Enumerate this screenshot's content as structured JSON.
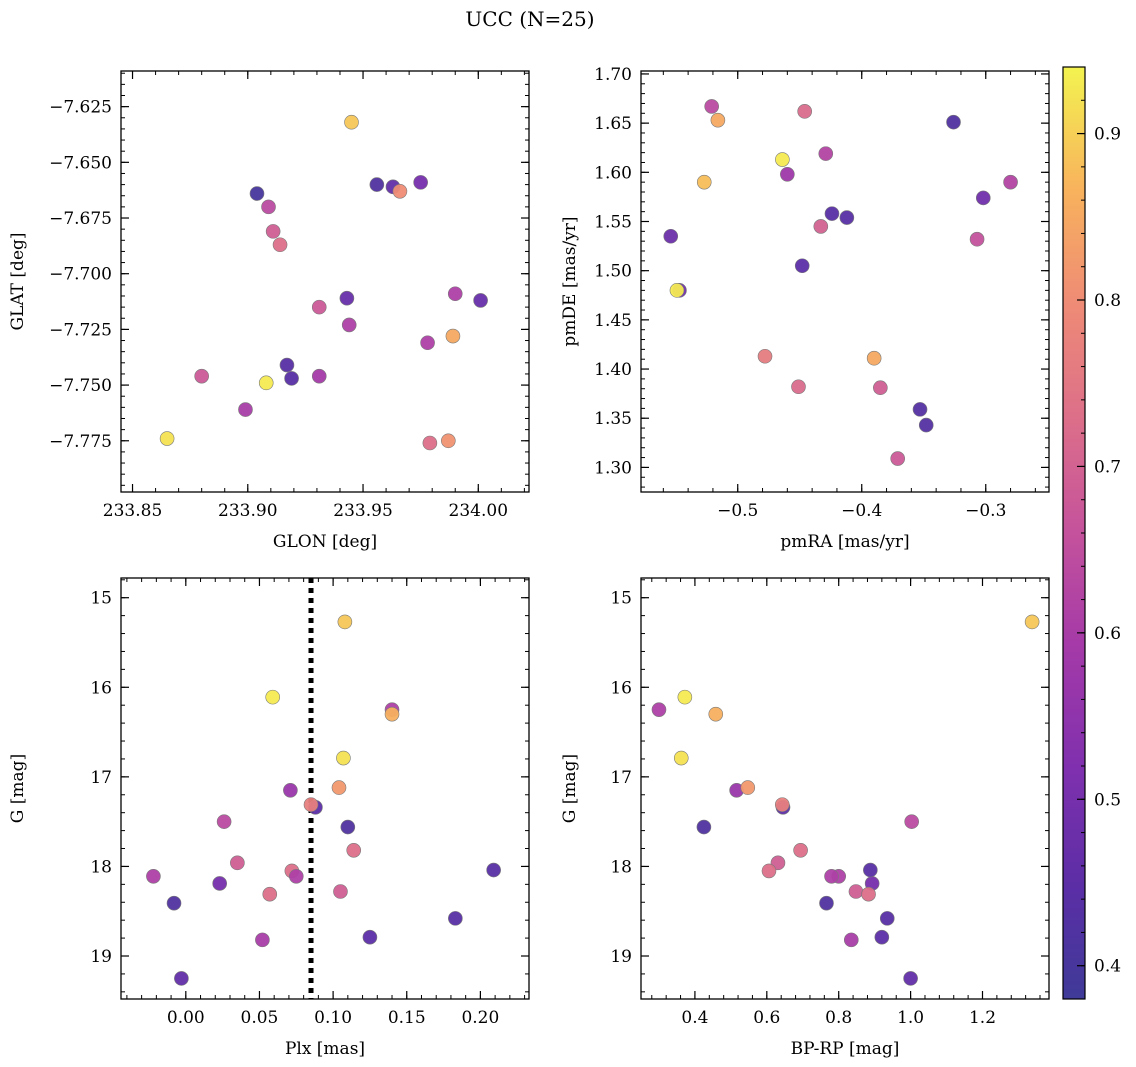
{
  "figure": {
    "title": "UCC (N=25)"
  },
  "colorbar": {
    "vmin": 0.38,
    "vmax": 0.94,
    "ticks": [
      0.4,
      0.5,
      0.6,
      0.7,
      0.8,
      0.9
    ],
    "tick_labels": [
      "0.4",
      "0.5",
      "0.6",
      "0.7",
      "0.8",
      "0.9"
    ],
    "colormap": "plasma"
  },
  "chart_data": [
    {
      "type": "scatter",
      "xlabel": "GLON [deg]",
      "ylabel": "GLAT [deg]",
      "xlim": [
        233.845,
        234.022
      ],
      "ylim": [
        -7.798,
        -7.609
      ],
      "xticks": [
        233.85,
        233.9,
        233.95,
        234.0
      ],
      "xtick_labels": [
        "233.85",
        "233.90",
        "233.95",
        "234.00"
      ],
      "yticks": [
        -7.625,
        -7.65,
        -7.675,
        -7.7,
        -7.725,
        -7.75,
        -7.775
      ],
      "ytick_labels": [
        "−7.625",
        "−7.650",
        "−7.675",
        "−7.700",
        "−7.725",
        "−7.750",
        "−7.775"
      ],
      "points": [
        {
          "x": 233.945,
          "y": -7.632,
          "c": 0.89
        },
        {
          "x": 233.956,
          "y": -7.66,
          "c": 0.42
        },
        {
          "x": 233.963,
          "y": -7.661,
          "c": 0.46
        },
        {
          "x": 233.966,
          "y": -7.663,
          "c": 0.8
        },
        {
          "x": 233.975,
          "y": -7.659,
          "c": 0.5
        },
        {
          "x": 233.904,
          "y": -7.664,
          "c": 0.4
        },
        {
          "x": 233.909,
          "y": -7.67,
          "c": 0.64
        },
        {
          "x": 233.911,
          "y": -7.681,
          "c": 0.69
        },
        {
          "x": 233.914,
          "y": -7.687,
          "c": 0.73
        },
        {
          "x": 233.943,
          "y": -7.711,
          "c": 0.47
        },
        {
          "x": 233.931,
          "y": -7.715,
          "c": 0.68
        },
        {
          "x": 233.944,
          "y": -7.723,
          "c": 0.61
        },
        {
          "x": 233.99,
          "y": -7.709,
          "c": 0.61
        },
        {
          "x": 234.001,
          "y": -7.712,
          "c": 0.47
        },
        {
          "x": 233.978,
          "y": -7.731,
          "c": 0.61
        },
        {
          "x": 233.989,
          "y": -7.728,
          "c": 0.85
        },
        {
          "x": 233.917,
          "y": -7.741,
          "c": 0.44
        },
        {
          "x": 233.919,
          "y": -7.747,
          "c": 0.44
        },
        {
          "x": 233.931,
          "y": -7.746,
          "c": 0.59
        },
        {
          "x": 233.88,
          "y": -7.746,
          "c": 0.68
        },
        {
          "x": 233.908,
          "y": -7.749,
          "c": 0.93
        },
        {
          "x": 233.899,
          "y": -7.761,
          "c": 0.6
        },
        {
          "x": 233.865,
          "y": -7.774,
          "c": 0.92
        },
        {
          "x": 233.979,
          "y": -7.776,
          "c": 0.73
        },
        {
          "x": 233.987,
          "y": -7.775,
          "c": 0.81
        }
      ]
    },
    {
      "type": "scatter",
      "xlabel": "pmRA [mas/yr]",
      "ylabel": "pmDE [mas/yr]",
      "xlim": [
        -0.578,
        -0.249
      ],
      "ylim": [
        1.275,
        1.703
      ],
      "xticks": [
        -0.5,
        -0.4,
        -0.3
      ],
      "xtick_labels": [
        "−0.5",
        "−0.4",
        "−0.3"
      ],
      "yticks": [
        1.3,
        1.35,
        1.4,
        1.45,
        1.5,
        1.55,
        1.6,
        1.65,
        1.7
      ],
      "ytick_labels": [
        "1.30",
        "1.35",
        "1.40",
        "1.45",
        "1.50",
        "1.55",
        "1.60",
        "1.65",
        "1.70"
      ],
      "points": [
        {
          "x": -0.521,
          "y": 1.667,
          "c": 0.64
        },
        {
          "x": -0.516,
          "y": 1.653,
          "c": 0.85
        },
        {
          "x": -0.446,
          "y": 1.662,
          "c": 0.72
        },
        {
          "x": -0.429,
          "y": 1.619,
          "c": 0.62
        },
        {
          "x": -0.464,
          "y": 1.613,
          "c": 0.93
        },
        {
          "x": -0.46,
          "y": 1.598,
          "c": 0.58
        },
        {
          "x": -0.527,
          "y": 1.59,
          "c": 0.88
        },
        {
          "x": -0.326,
          "y": 1.651,
          "c": 0.42
        },
        {
          "x": -0.302,
          "y": 1.574,
          "c": 0.49
        },
        {
          "x": -0.28,
          "y": 1.59,
          "c": 0.62
        },
        {
          "x": -0.424,
          "y": 1.558,
          "c": 0.44
        },
        {
          "x": -0.412,
          "y": 1.554,
          "c": 0.44
        },
        {
          "x": -0.433,
          "y": 1.545,
          "c": 0.7
        },
        {
          "x": -0.554,
          "y": 1.535,
          "c": 0.48
        },
        {
          "x": -0.307,
          "y": 1.532,
          "c": 0.66
        },
        {
          "x": -0.448,
          "y": 1.505,
          "c": 0.45
        },
        {
          "x": -0.547,
          "y": 1.48,
          "c": 0.49
        },
        {
          "x": -0.549,
          "y": 1.48,
          "c": 0.93
        },
        {
          "x": -0.478,
          "y": 1.413,
          "c": 0.76
        },
        {
          "x": -0.39,
          "y": 1.411,
          "c": 0.85
        },
        {
          "x": -0.451,
          "y": 1.382,
          "c": 0.72
        },
        {
          "x": -0.385,
          "y": 1.381,
          "c": 0.69
        },
        {
          "x": -0.353,
          "y": 1.359,
          "c": 0.43
        },
        {
          "x": -0.348,
          "y": 1.343,
          "c": 0.43
        },
        {
          "x": -0.371,
          "y": 1.309,
          "c": 0.68
        }
      ]
    },
    {
      "type": "scatter",
      "xlabel": "Plx [mas]",
      "ylabel": "G [mag]",
      "xlim": [
        -0.044,
        0.233
      ],
      "ylim": [
        19.48,
        14.78
      ],
      "xticks": [
        0.0,
        0.05,
        0.1,
        0.15,
        0.2
      ],
      "xtick_labels": [
        "0.00",
        "0.05",
        "0.10",
        "0.15",
        "0.20"
      ],
      "yticks": [
        15,
        16,
        17,
        18,
        19
      ],
      "ytick_labels": [
        "15",
        "16",
        "17",
        "18",
        "19"
      ],
      "vline": {
        "x": 0.085,
        "style": "dotted",
        "color": "#000000"
      },
      "points": [
        {
          "x": 0.108,
          "y": 15.27,
          "c": 0.89
        },
        {
          "x": 0.059,
          "y": 16.11,
          "c": 0.93
        },
        {
          "x": 0.14,
          "y": 16.25,
          "c": 0.61
        },
        {
          "x": 0.14,
          "y": 16.3,
          "c": 0.86
        },
        {
          "x": 0.107,
          "y": 16.79,
          "c": 0.92
        },
        {
          "x": 0.071,
          "y": 17.15,
          "c": 0.57
        },
        {
          "x": 0.104,
          "y": 17.12,
          "c": 0.82
        },
        {
          "x": 0.088,
          "y": 17.34,
          "c": 0.45
        },
        {
          "x": 0.085,
          "y": 17.31,
          "c": 0.77
        },
        {
          "x": 0.026,
          "y": 17.5,
          "c": 0.64
        },
        {
          "x": 0.11,
          "y": 17.56,
          "c": 0.42
        },
        {
          "x": 0.114,
          "y": 17.82,
          "c": 0.73
        },
        {
          "x": 0.035,
          "y": 17.96,
          "c": 0.69
        },
        {
          "x": 0.072,
          "y": 18.05,
          "c": 0.73
        },
        {
          "x": 0.075,
          "y": 18.11,
          "c": 0.61
        },
        {
          "x": -0.022,
          "y": 18.11,
          "c": 0.61
        },
        {
          "x": 0.023,
          "y": 18.19,
          "c": 0.5
        },
        {
          "x": 0.105,
          "y": 18.28,
          "c": 0.69
        },
        {
          "x": 0.057,
          "y": 18.31,
          "c": 0.73
        },
        {
          "x": 0.209,
          "y": 18.04,
          "c": 0.44
        },
        {
          "x": -0.008,
          "y": 18.41,
          "c": 0.42
        },
        {
          "x": 0.183,
          "y": 18.58,
          "c": 0.44
        },
        {
          "x": 0.052,
          "y": 18.82,
          "c": 0.6
        },
        {
          "x": 0.125,
          "y": 18.79,
          "c": 0.45
        },
        {
          "x": -0.003,
          "y": 19.25,
          "c": 0.46
        }
      ]
    },
    {
      "type": "scatter",
      "xlabel": "BP-RP [mag]",
      "ylabel": "G [mag]",
      "xlim": [
        0.25,
        1.385
      ],
      "ylim": [
        19.48,
        14.78
      ],
      "xticks": [
        0.4,
        0.6,
        0.8,
        1.0,
        1.2
      ],
      "xtick_labels": [
        "0.4",
        "0.6",
        "0.8",
        "1.0",
        "1.2"
      ],
      "yticks": [
        15,
        16,
        17,
        18,
        19
      ],
      "ytick_labels": [
        "15",
        "16",
        "17",
        "18",
        "19"
      ],
      "points": [
        {
          "x": 1.338,
          "y": 15.27,
          "c": 0.89
        },
        {
          "x": 0.372,
          "y": 16.11,
          "c": 0.93
        },
        {
          "x": 0.3,
          "y": 16.25,
          "c": 0.61
        },
        {
          "x": 0.458,
          "y": 16.3,
          "c": 0.86
        },
        {
          "x": 0.362,
          "y": 16.79,
          "c": 0.92
        },
        {
          "x": 0.516,
          "y": 17.15,
          "c": 0.57
        },
        {
          "x": 0.547,
          "y": 17.12,
          "c": 0.82
        },
        {
          "x": 0.645,
          "y": 17.34,
          "c": 0.45
        },
        {
          "x": 0.643,
          "y": 17.31,
          "c": 0.77
        },
        {
          "x": 1.003,
          "y": 17.5,
          "c": 0.64
        },
        {
          "x": 0.425,
          "y": 17.56,
          "c": 0.42
        },
        {
          "x": 0.694,
          "y": 17.82,
          "c": 0.73
        },
        {
          "x": 0.631,
          "y": 17.96,
          "c": 0.69
        },
        {
          "x": 0.606,
          "y": 18.05,
          "c": 0.73
        },
        {
          "x": 0.8,
          "y": 18.11,
          "c": 0.61
        },
        {
          "x": 0.78,
          "y": 18.11,
          "c": 0.61
        },
        {
          "x": 0.893,
          "y": 18.19,
          "c": 0.5
        },
        {
          "x": 0.848,
          "y": 18.28,
          "c": 0.69
        },
        {
          "x": 0.883,
          "y": 18.31,
          "c": 0.73
        },
        {
          "x": 0.888,
          "y": 18.04,
          "c": 0.44
        },
        {
          "x": 0.766,
          "y": 18.41,
          "c": 0.42
        },
        {
          "x": 0.935,
          "y": 18.58,
          "c": 0.44
        },
        {
          "x": 0.835,
          "y": 18.82,
          "c": 0.6
        },
        {
          "x": 0.92,
          "y": 18.79,
          "c": 0.45
        },
        {
          "x": 1.0,
          "y": 19.25,
          "c": 0.46
        }
      ]
    }
  ]
}
